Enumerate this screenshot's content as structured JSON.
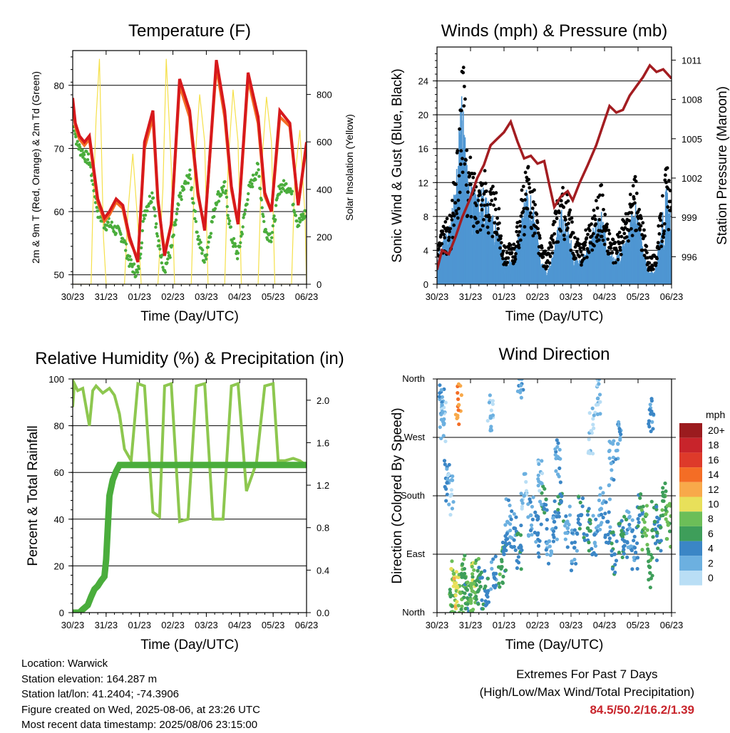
{
  "time_ticks": [
    "30/23",
    "31/23",
    "01/23",
    "02/23",
    "03/23",
    "04/23",
    "05/23",
    "06/23"
  ],
  "xlabel": "Time (Day/UTC)",
  "colors": {
    "temp2m": "#d7191c",
    "temp9m": "#f46d25",
    "dewpoint": "#4aad3c",
    "solar": "#f5e04a",
    "wind": "#4f96d2",
    "gust": "#000000",
    "pressure": "#a31d21",
    "rh": "#8dc74f",
    "precip": "#4aad3c",
    "extremes": "#c8242b"
  },
  "chart_data": [
    {
      "id": "temperature",
      "type": "line",
      "title": "Temperature (F)",
      "xlabel": "Time (Day/UTC)",
      "ylabel": "2m & 9m T (Red, Orange) & 2m Td (Green)",
      "ylabel_right": "Solar Insolation (Yellow)",
      "x_range_days": [
        0,
        7
      ],
      "ylim": [
        48.5,
        85.5
      ],
      "yticks": [
        50,
        60,
        70,
        80
      ],
      "ylim_right": [
        0,
        985
      ],
      "yticks_right": [
        0,
        200,
        400,
        600,
        800
      ],
      "grid": "horizontal",
      "series": [
        {
          "name": "2m T",
          "axis": "left",
          "x": [
            0,
            0.08,
            0.2,
            0.35,
            0.5,
            0.75,
            0.95,
            1.1,
            1.3,
            1.5,
            1.7,
            1.95,
            2.15,
            2.4,
            2.55,
            2.75,
            2.95,
            3.2,
            3.5,
            3.75,
            3.95,
            4.3,
            4.55,
            4.75,
            4.95,
            5.25,
            5.55,
            5.75,
            5.95,
            6.2,
            6.5,
            6.75,
            7.0
          ],
          "values": [
            78,
            74,
            72,
            71,
            72,
            62,
            59,
            60,
            62,
            61,
            56,
            52,
            71,
            76,
            62,
            53,
            58,
            81,
            76,
            63,
            57,
            84,
            76,
            64,
            58,
            82,
            75,
            63,
            60,
            76,
            74,
            61,
            71
          ]
        },
        {
          "name": "9m T",
          "axis": "left",
          "x": [
            0,
            0.08,
            0.2,
            0.35,
            0.5,
            0.75,
            0.95,
            1.1,
            1.3,
            1.5,
            1.7,
            1.95,
            2.15,
            2.4,
            2.55,
            2.75,
            2.95,
            3.2,
            3.5,
            3.75,
            3.95,
            4.3,
            4.55,
            4.75,
            4.95,
            5.25,
            5.55,
            5.75,
            5.95,
            6.2,
            6.5,
            6.75,
            7.0
          ],
          "values": [
            77.5,
            73.5,
            71.5,
            70.5,
            71.5,
            61.5,
            58.5,
            59.5,
            61.5,
            60.5,
            55.5,
            52.5,
            70,
            75,
            61.5,
            53.5,
            58,
            80,
            75,
            62.5,
            57.5,
            83,
            75,
            63.5,
            58,
            81,
            74,
            62.5,
            60,
            75,
            73.5,
            61,
            70.5
          ]
        },
        {
          "name": "2m Td",
          "axis": "left",
          "x": [
            0,
            0.08,
            0.2,
            0.35,
            0.5,
            0.75,
            0.95,
            1.1,
            1.3,
            1.5,
            1.7,
            1.95,
            2.15,
            2.4,
            2.55,
            2.75,
            2.95,
            3.2,
            3.5,
            3.75,
            3.95,
            4.3,
            4.55,
            4.75,
            4.95,
            5.25,
            5.55,
            5.75,
            5.95,
            6.2,
            6.5,
            6.75,
            7.0
          ],
          "values": [
            76,
            72,
            70,
            69,
            68,
            60,
            58,
            58,
            57,
            56,
            52,
            50,
            60,
            63,
            55,
            51,
            54,
            62,
            66,
            56,
            52,
            62,
            64,
            56,
            53,
            63,
            67,
            57,
            56,
            64,
            64,
            58,
            60
          ]
        },
        {
          "name": "Solar Insolation",
          "axis": "right",
          "x": [
            0,
            0.55,
            0.6,
            0.7,
            0.8,
            0.92,
            1.0,
            1.55,
            1.65,
            1.8,
            1.95,
            2.05,
            2.55,
            2.7,
            2.8,
            2.95,
            3.05,
            3.55,
            3.65,
            3.8,
            3.95,
            4.05,
            4.55,
            4.65,
            4.8,
            4.95,
            5.05,
            5.55,
            5.65,
            5.8,
            5.95,
            6.05,
            6.55,
            6.65,
            6.8,
            6.95,
            7.0
          ],
          "values": [
            0,
            0,
            300,
            700,
            950,
            200,
            0,
            0,
            300,
            550,
            250,
            0,
            0,
            400,
            950,
            500,
            0,
            0,
            500,
            800,
            600,
            0,
            0,
            500,
            820,
            600,
            0,
            0,
            480,
            790,
            600,
            0,
            0,
            450,
            650,
            300,
            0
          ]
        }
      ]
    },
    {
      "id": "winds",
      "type": "line",
      "title": "Winds (mph) & Pressure (mb)",
      "xlabel": "Time (Day/UTC)",
      "ylabel": "Sonic Wind & Gust (Blue, Black)",
      "ylabel_right": "Station Pressure (Maroon)",
      "x_range_days": [
        0,
        7
      ],
      "ylim": [
        0,
        28
      ],
      "yticks": [
        0,
        4,
        8,
        12,
        16,
        20,
        24
      ],
      "ylim_right": [
        993.9,
        1012
      ],
      "yticks_right": [
        996,
        999,
        1002,
        1005,
        1008,
        1011
      ],
      "grid": "horizontal",
      "series": [
        {
          "name": "Sonic Wind",
          "axis": "left",
          "x": [
            0,
            0.2,
            0.4,
            0.55,
            0.65,
            0.75,
            0.9,
            1.05,
            1.2,
            1.35,
            1.6,
            1.8,
            2.0,
            2.3,
            2.5,
            2.7,
            2.9,
            3.1,
            3.3,
            3.5,
            3.7,
            3.9,
            4.1,
            4.3,
            4.5,
            4.7,
            4.9,
            5.1,
            5.3,
            5.5,
            5.7,
            5.9,
            6.1,
            6.3,
            6.5,
            6.7,
            6.85,
            7.0
          ],
          "values": [
            2,
            4,
            5,
            8,
            12,
            16,
            10,
            8,
            7,
            8,
            6,
            5,
            2,
            2,
            5,
            8,
            6,
            2,
            1,
            3,
            6,
            5,
            2,
            2,
            3,
            5,
            6,
            3,
            2,
            3,
            4,
            7,
            4,
            1,
            1,
            5,
            8,
            5
          ]
        },
        {
          "name": "Gust",
          "axis": "left",
          "x": [
            0,
            0.2,
            0.4,
            0.55,
            0.65,
            0.75,
            0.9,
            1.05,
            1.2,
            1.35,
            1.6,
            1.8,
            2.0,
            2.3,
            2.5,
            2.7,
            2.9,
            3.1,
            3.3,
            3.5,
            3.7,
            3.9,
            4.1,
            4.3,
            4.5,
            4.7,
            4.9,
            5.1,
            5.3,
            5.5,
            5.7,
            5.9,
            6.1,
            6.3,
            6.5,
            6.7,
            6.85,
            7.0
          ],
          "values": [
            4,
            6,
            7,
            12,
            14,
            25,
            14,
            12,
            11,
            12,
            10,
            9,
            4,
            4,
            9,
            12,
            10,
            4,
            3,
            7,
            10,
            9,
            5,
            4,
            6,
            8,
            10,
            6,
            4,
            6,
            8,
            11,
            7,
            3,
            3,
            8,
            13,
            8
          ]
        },
        {
          "name": "Station Pressure",
          "axis": "right",
          "x": [
            0,
            0.15,
            0.35,
            0.55,
            0.75,
            1.0,
            1.2,
            1.4,
            1.6,
            1.8,
            2.0,
            2.2,
            2.4,
            2.6,
            2.8,
            3.0,
            3.2,
            3.35,
            3.5,
            3.7,
            3.9,
            4.05,
            4.25,
            4.5,
            4.75,
            4.95,
            5.15,
            5.35,
            5.55,
            5.75,
            5.95,
            6.15,
            6.35,
            6.55,
            6.75,
            7.0
          ],
          "values": [
            995,
            996.5,
            996.2,
            997.5,
            999,
            1000.5,
            1002,
            1003,
            1004.5,
            1005,
            1005.5,
            1006.3,
            1004.8,
            1003.5,
            1003.7,
            1003.1,
            1003.3,
            1001.5,
            999.8,
            1000.6,
            1001,
            1000.3,
            1001.6,
            1003,
            1004.5,
            1006,
            1007.5,
            1007,
            1007.2,
            1008.3,
            1009,
            1009.7,
            1010.6,
            1010.1,
            1010.3,
            1009.6
          ]
        }
      ]
    },
    {
      "id": "humidity",
      "type": "line",
      "title": "Relative Humidity (%) & Precipitation (in)",
      "xlabel": "Time (Day/UTC)",
      "ylabel": "Percent & Total Rainfall",
      "x_range_days": [
        0,
        7
      ],
      "ylim": [
        0,
        100
      ],
      "yticks": [
        0,
        20,
        40,
        60,
        80,
        100
      ],
      "ylim_right": [
        0,
        2.2
      ],
      "yticks_right": [
        0.0,
        0.4,
        0.8,
        1.2,
        1.6,
        2.0
      ],
      "grid": "horizontal",
      "series": [
        {
          "name": "Relative Humidity",
          "axis": "left",
          "x": [
            0,
            0.05,
            0.15,
            0.3,
            0.5,
            0.6,
            0.7,
            0.9,
            1.1,
            1.25,
            1.4,
            1.55,
            1.75,
            1.95,
            2.15,
            2.4,
            2.6,
            2.75,
            2.95,
            3.2,
            3.45,
            3.7,
            3.95,
            4.2,
            4.5,
            4.75,
            4.95,
            5.2,
            5.5,
            5.75,
            6.0,
            6.15,
            6.35,
            6.6,
            6.8,
            7.0
          ],
          "values": [
            88,
            98,
            95,
            96,
            80,
            95,
            97,
            94,
            96,
            93,
            85,
            70,
            65,
            98,
            97,
            43,
            41,
            97,
            98,
            39,
            40,
            97,
            98,
            40,
            40,
            97,
            98,
            52,
            64,
            97,
            98,
            65,
            65,
            66,
            65,
            63
          ]
        },
        {
          "name": "Total Rainfall",
          "axis": "right",
          "x": [
            0,
            0.1,
            0.2,
            0.3,
            0.45,
            0.55,
            0.65,
            0.75,
            0.85,
            0.95,
            1.0,
            1.05,
            1.1,
            1.2,
            1.3,
            1.4,
            7.0
          ],
          "values": [
            0,
            0,
            0,
            0.03,
            0.07,
            0.15,
            0.22,
            0.25,
            0.3,
            0.34,
            0.5,
            0.8,
            1.1,
            1.25,
            1.33,
            1.39,
            1.39
          ]
        }
      ]
    },
    {
      "id": "wind_direction",
      "type": "scatter",
      "title": "Wind Direction",
      "xlabel": "Time (Day/UTC)",
      "ylabel": "Direction (Colored By Speed)",
      "x_range_days": [
        0,
        7
      ],
      "ylim_degrees": [
        0,
        360
      ],
      "ytick_labels": [
        "North",
        "East",
        "South",
        "West",
        "North"
      ],
      "grid": "horizontal",
      "legend": {
        "title": "mph",
        "placement": "right",
        "labels": [
          "20+",
          "18",
          "16",
          "14",
          "12",
          "10",
          "8",
          "6",
          "4",
          "2",
          "0"
        ],
        "colors": [
          "#9b1b1e",
          "#c8242b",
          "#de3a2a",
          "#f46d25",
          "#f8a94a",
          "#e8e05a",
          "#6cbe58",
          "#3e9e5a",
          "#3b86c6",
          "#6cb0e0",
          "#b9def5"
        ]
      },
      "scatter_points": {
        "x": [
          0.15,
          0.3,
          0.45,
          0.5,
          0.6,
          0.7,
          0.8,
          0.9,
          1.0,
          1.1,
          1.2,
          1.3,
          1.5,
          1.7,
          1.9,
          2.1,
          2.3,
          2.45,
          2.6,
          2.8,
          3.0,
          3.2,
          3.35,
          3.5,
          3.7,
          3.9,
          4.1,
          4.3,
          4.5,
          4.7,
          4.9,
          5.1,
          5.3,
          5.5,
          5.6,
          5.75,
          5.9,
          6.05,
          6.2,
          6.35,
          6.5,
          6.6,
          6.75,
          6.9,
          0.2,
          1.6,
          2.5,
          3.6,
          4.8,
          5.4,
          6.4,
          0.65,
          0.4,
          2.0,
          3.1,
          4.6,
          5.2
        ],
        "y": [
          320,
          200,
          10,
          60,
          40,
          30,
          55,
          35,
          20,
          45,
          50,
          40,
          30,
          60,
          70,
          140,
          130,
          100,
          180,
          150,
          120,
          160,
          110,
          140,
          170,
          130,
          100,
          150,
          130,
          120,
          160,
          140,
          90,
          120,
          110,
          130,
          100,
          150,
          130,
          70,
          140,
          110,
          180,
          135,
          290,
          300,
          350,
          240,
          330,
          260,
          310,
          320,
          180,
          90,
          200,
          280,
          230
        ],
        "speeds": [
          2,
          3,
          6,
          8,
          10,
          7,
          6,
          5,
          7,
          8,
          6,
          5,
          4,
          3,
          6,
          2,
          3,
          4,
          1,
          2,
          3,
          4,
          2,
          3,
          4,
          2,
          3,
          4,
          5,
          3,
          2,
          3,
          4,
          5,
          4,
          2,
          3,
          4,
          7,
          6,
          5,
          4,
          6,
          7,
          1,
          1,
          2,
          2,
          1,
          2,
          3,
          12,
          0,
          4,
          1,
          0,
          2
        ]
      }
    }
  ],
  "footer": {
    "location": "Location: Warwick",
    "elevation": "Station elevation: 164.287 m",
    "latlon": "Station lat/lon: 41.2404; -74.3906",
    "created": "Figure created on Wed, 2025-08-06, at 23:26 UTC",
    "recent": "Most recent data timestamp: 2025/08/06 23:15:00"
  },
  "extremes": {
    "title": "Extremes For Past 7 Days",
    "subtitle": "(High/Low/Max Wind/Total Precipitation)",
    "values": "84.5/50.2/16.2/1.39"
  }
}
